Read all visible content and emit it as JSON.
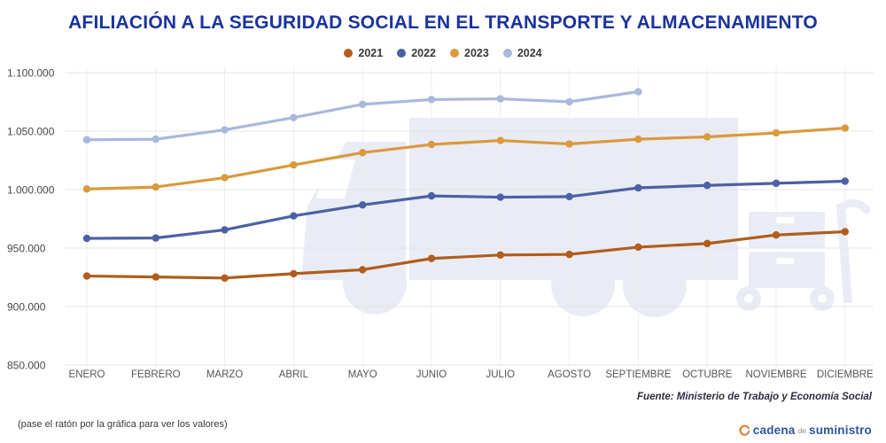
{
  "header": {
    "title": "AFILIACIÓN A LA SEGURIDAD SOCIAL EN EL TRANSPORTE Y ALMACENAMIENTO"
  },
  "chart_data": {
    "type": "line",
    "title": "AFILIACIÓN A LA SEGURIDAD SOCIAL EN EL TRANSPORTE Y ALMACENAMIENTO",
    "categories": [
      "ENERO",
      "FEBRERO",
      "MARZO",
      "ABRIL",
      "MAYO",
      "JUNIO",
      "JULIO",
      "AGOSTO",
      "SEPTIEMBRE",
      "OCTUBRE",
      "NOVIEMBRE",
      "DICIEMBRE"
    ],
    "series": [
      {
        "name": "2021",
        "color": "#b05d1d",
        "values": [
          926100,
          925300,
          924400,
          928100,
          931500,
          941100,
          944100,
          944600,
          950800,
          953900,
          961200,
          964000
        ]
      },
      {
        "name": "2022",
        "color": "#4c61a3",
        "values": [
          958300,
          958600,
          965600,
          977500,
          986900,
          994600,
          993500,
          994000,
          1001500,
          1003600,
          1005400,
          1007200
        ]
      },
      {
        "name": "2023",
        "color": "#d99a3e",
        "values": [
          1000500,
          1002200,
          1010200,
          1021100,
          1031600,
          1038600,
          1042000,
          1039000,
          1043100,
          1045100,
          1048500,
          1052600
        ]
      },
      {
        "name": "2024",
        "color": "#a9b8dc",
        "values": [
          1042600,
          1043100,
          1051100,
          1061600,
          1072900,
          1077000,
          1077600,
          1075100,
          1083700,
          null,
          null,
          null
        ]
      }
    ],
    "xlabel": "",
    "ylabel": "",
    "ylim": [
      850000,
      1100000
    ],
    "ytick_values": [
      1100000,
      1050000,
      1000000,
      950000,
      900000,
      850000
    ],
    "ytick_labels": [
      "1.100.000",
      "1.050.000",
      "1.000.000",
      "950.000",
      "900.000",
      "850.000"
    ],
    "grid": "on",
    "legend_position": "top"
  },
  "footer": {
    "source": "Fuente: Ministerio de Trabajo y Economía Social",
    "hint": "(pase el ratón por la gráfica para ver los valores)",
    "logo": {
      "word1": "cadena",
      "word2": "de",
      "word3": "suministro"
    }
  },
  "colors": {
    "title": "#1a33a0",
    "watermark": "#e9ecf5",
    "grid_horizontal": "#e4e4e8",
    "grid_vertical": "#ededf1",
    "ytick_text": "#48484a",
    "xtick_text": "#55565a",
    "logo_blue": "#2b55a0",
    "logo_orange": "#e87b22"
  }
}
